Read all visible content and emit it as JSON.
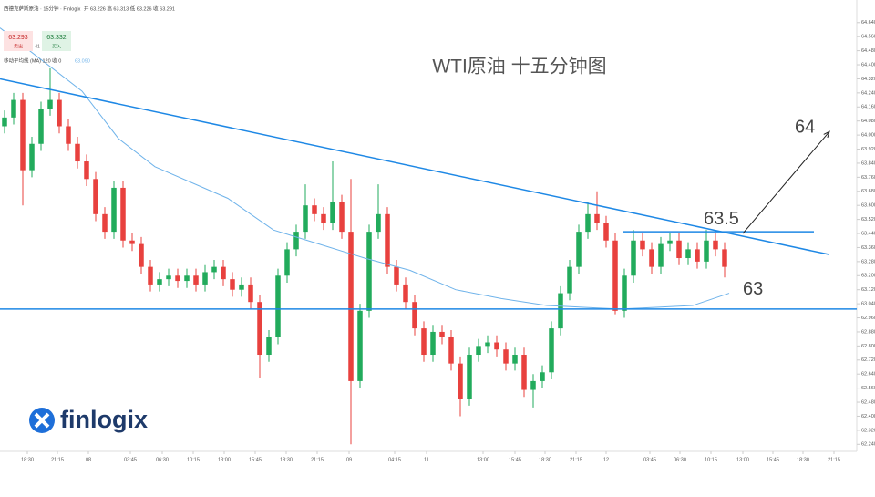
{
  "chart_data": {
    "type": "candlestick",
    "title": "WTI原油 十五分钟图",
    "up_color": "#22ab5c",
    "down_color": "#e8413e",
    "xlim": [
      -0.5,
      93.5
    ],
    "ylim": [
      62.2,
      64.67
    ],
    "open": [
      64.05,
      64.1,
      64.2,
      63.8,
      63.95,
      64.15,
      64.2,
      64.05,
      63.95,
      63.85,
      63.75,
      63.55,
      63.45,
      63.7,
      63.4,
      63.38,
      63.25,
      63.15,
      63.18,
      63.2,
      63.17,
      63.2,
      63.15,
      63.22,
      63.25,
      63.18,
      63.12,
      63.15,
      63.05,
      62.75,
      62.85,
      63.2,
      63.35,
      63.45,
      63.6,
      63.55,
      63.5,
      63.62,
      63.45,
      62.6,
      63.0,
      63.45,
      63.55,
      63.25,
      63.15,
      63.05,
      62.9,
      62.75,
      62.88,
      62.85,
      62.7,
      62.5,
      62.75,
      62.8,
      62.82,
      62.78,
      62.7,
      62.75,
      62.55,
      62.6,
      62.65,
      62.9,
      63.1,
      63.25,
      63.45,
      63.55,
      63.5,
      63.4,
      63.0,
      63.2,
      63.4,
      63.35,
      63.25,
      63.38,
      63.4,
      63.3,
      63.35,
      63.28,
      63.4,
      63.35
    ],
    "high": [
      64.14,
      64.24,
      64.24,
      63.99,
      64.19,
      64.38,
      64.24,
      64.09,
      63.99,
      63.89,
      63.79,
      63.59,
      63.74,
      63.74,
      63.44,
      63.42,
      63.29,
      63.22,
      63.24,
      63.24,
      63.24,
      63.24,
      63.26,
      63.29,
      63.29,
      63.22,
      63.19,
      63.19,
      63.09,
      62.89,
      63.24,
      63.39,
      63.49,
      63.72,
      63.64,
      63.59,
      63.85,
      63.66,
      63.75,
      63.04,
      63.49,
      63.72,
      63.59,
      63.29,
      63.19,
      63.09,
      62.94,
      62.92,
      62.92,
      62.89,
      62.74,
      62.79,
      62.84,
      62.86,
      62.86,
      62.82,
      62.79,
      62.79,
      62.64,
      62.69,
      62.94,
      63.14,
      63.29,
      63.49,
      63.62,
      63.68,
      63.54,
      63.44,
      63.24,
      63.46,
      63.44,
      63.39,
      63.42,
      63.44,
      63.44,
      63.39,
      63.39,
      63.46,
      63.44,
      63.39
    ],
    "low": [
      64.01,
      64.06,
      63.6,
      63.76,
      63.91,
      64.11,
      64.01,
      63.91,
      63.81,
      63.71,
      63.51,
      63.41,
      63.41,
      63.36,
      63.34,
      63.21,
      63.11,
      63.11,
      63.14,
      63.13,
      63.13,
      63.11,
      63.11,
      63.18,
      63.14,
      63.08,
      63.08,
      63.01,
      62.62,
      62.71,
      62.81,
      63.16,
      63.31,
      63.41,
      63.51,
      63.46,
      63.46,
      63.41,
      62.24,
      62.56,
      62.96,
      63.41,
      63.21,
      63.11,
      63.01,
      62.86,
      62.71,
      62.71,
      62.81,
      62.66,
      62.4,
      62.46,
      62.71,
      62.76,
      62.74,
      62.66,
      62.66,
      62.51,
      62.45,
      62.56,
      62.61,
      62.86,
      63.06,
      63.21,
      63.41,
      63.46,
      63.36,
      62.98,
      62.96,
      63.16,
      63.31,
      63.21,
      63.21,
      63.34,
      63.26,
      63.26,
      63.24,
      63.24,
      63.31,
      63.19
    ],
    "close": [
      64.1,
      64.2,
      63.8,
      63.95,
      64.15,
      64.2,
      64.05,
      63.95,
      63.85,
      63.75,
      63.55,
      63.45,
      63.7,
      63.4,
      63.38,
      63.25,
      63.15,
      63.18,
      63.2,
      63.17,
      63.2,
      63.15,
      63.22,
      63.25,
      63.18,
      63.12,
      63.15,
      63.05,
      62.75,
      62.85,
      63.2,
      63.35,
      63.45,
      63.6,
      63.55,
      63.5,
      63.62,
      63.45,
      62.6,
      63.0,
      63.45,
      63.55,
      63.25,
      63.15,
      63.05,
      62.9,
      62.75,
      62.88,
      62.85,
      62.7,
      62.5,
      62.75,
      62.8,
      62.82,
      62.78,
      62.7,
      62.75,
      62.55,
      62.6,
      62.65,
      62.9,
      63.1,
      63.25,
      63.45,
      63.55,
      63.5,
      63.4,
      63.0,
      63.2,
      63.4,
      63.35,
      63.25,
      63.38,
      63.4,
      63.3,
      63.35,
      63.28,
      63.4,
      63.35,
      63.25
    ],
    "ma": {
      "color": "#6fb3ea",
      "x": [
        -0.5,
        8.5,
        12.5,
        16.5,
        24.5,
        29.5,
        34.5,
        39.5,
        44.5,
        49.5,
        54.5,
        59.5,
        67.5,
        71.5,
        75.5,
        79.5
      ],
      "values": [
        64.61,
        64.25,
        63.98,
        63.82,
        63.64,
        63.46,
        63.38,
        63.3,
        63.23,
        63.12,
        63.07,
        63.03,
        63.01,
        63.02,
        63.03,
        63.1
      ]
    },
    "lines": [
      {
        "color": "#1e88e5",
        "x": [
          -0.5,
          90.5
        ],
        "y": [
          64.32,
          63.32
        ]
      },
      {
        "color": "#1e88e5",
        "x": [
          -0.5,
          93.5
        ],
        "y": [
          63.01,
          63.01
        ]
      },
      {
        "color": "#1e88e5",
        "x": [
          67.8,
          88.8
        ],
        "y": [
          63.45,
          63.45
        ]
      },
      {
        "color": "#222222",
        "x": [
          81,
          90.5
        ],
        "y": [
          63.44,
          64.02
        ]
      }
    ],
    "annotations": [
      {
        "text": "64",
        "x": 86.7,
        "y": 64.04
      },
      {
        "text": "63.5",
        "x": 76.7,
        "y": 63.52
      },
      {
        "text": "63",
        "x": 81,
        "y": 63.12
      }
    ],
    "yticks": [
      {
        "value": 64.64,
        "label": "64.640"
      },
      {
        "value": 64.56,
        "label": "64.560"
      },
      {
        "value": 64.48,
        "label": "64.480"
      },
      {
        "value": 64.4,
        "label": "64.400"
      },
      {
        "value": 64.32,
        "label": "64.320"
      },
      {
        "value": 64.24,
        "label": "64.240"
      },
      {
        "value": 64.16,
        "label": "64.160"
      },
      {
        "value": 64.08,
        "label": "64.080"
      },
      {
        "value": 64.0,
        "label": "64.000"
      },
      {
        "value": 63.92,
        "label": "63.920"
      },
      {
        "value": 63.84,
        "label": "63.840"
      },
      {
        "value": 63.76,
        "label": "63.760"
      },
      {
        "value": 63.68,
        "label": "63.680"
      },
      {
        "value": 63.6,
        "label": "63.600"
      },
      {
        "value": 63.52,
        "label": "63.520"
      },
      {
        "value": 63.44,
        "label": "63.440"
      },
      {
        "value": 63.36,
        "label": "63.360"
      },
      {
        "value": 63.28,
        "label": "63.280"
      },
      {
        "value": 63.2,
        "label": "63.200"
      },
      {
        "value": 63.12,
        "label": "63.120"
      },
      {
        "value": 63.04,
        "label": "63.040"
      },
      {
        "value": 62.96,
        "label": "62.960"
      },
      {
        "value": 62.88,
        "label": "62.880"
      },
      {
        "value": 62.8,
        "label": "62.800"
      },
      {
        "value": 62.72,
        "label": "62.720"
      },
      {
        "value": 62.64,
        "label": "62.640"
      },
      {
        "value": 62.56,
        "label": "62.560"
      },
      {
        "value": 62.48,
        "label": "62.480"
      },
      {
        "value": 62.4,
        "label": "62.400"
      },
      {
        "value": 62.32,
        "label": "62.320"
      },
      {
        "value": 62.24,
        "label": "62.240"
      }
    ],
    "xticks": [
      {
        "value": 2.5,
        "label": "18:30"
      },
      {
        "value": 5.8,
        "label": "21:15"
      },
      {
        "value": 9.2,
        "label": "08"
      },
      {
        "value": 13.8,
        "label": "03:45"
      },
      {
        "value": 17.3,
        "label": "06:30"
      },
      {
        "value": 20.7,
        "label": "10:15"
      },
      {
        "value": 24.1,
        "label": "13:00"
      },
      {
        "value": 27.5,
        "label": "15:45"
      },
      {
        "value": 30.9,
        "label": "18:30"
      },
      {
        "value": 34.3,
        "label": "21:15"
      },
      {
        "value": 37.8,
        "label": "09"
      },
      {
        "value": 42.8,
        "label": "04:15"
      },
      {
        "value": 46.3,
        "label": "11"
      },
      {
        "value": 52.5,
        "label": "13:00"
      },
      {
        "value": 56,
        "label": "15:45"
      },
      {
        "value": 59.3,
        "label": "18:30"
      },
      {
        "value": 62.7,
        "label": "21:15"
      },
      {
        "value": 66,
        "label": "12"
      },
      {
        "value": 70.8,
        "label": "03:45"
      },
      {
        "value": 74.1,
        "label": "06:30"
      },
      {
        "value": 77.5,
        "label": "10:15"
      },
      {
        "value": 81,
        "label": "13:00"
      },
      {
        "value": 84.3,
        "label": "15:45"
      },
      {
        "value": 87.6,
        "label": "18:30"
      },
      {
        "value": 91,
        "label": "21:15"
      }
    ]
  },
  "header": {
    "symbol": "西德克萨斯原油 · 15分钟 · Finlogix",
    "ohlc": "开 63.226  高 63.313  低 63.226  收 63.291",
    "sell_price": "63.293",
    "sell": "卖出",
    "spread": "41",
    "buy_price": "63.332",
    "buy": "买入",
    "indicator": "移动平均线 (MA)  120  收  0",
    "indicator_value": "63.090",
    "brand": "finlogix"
  }
}
